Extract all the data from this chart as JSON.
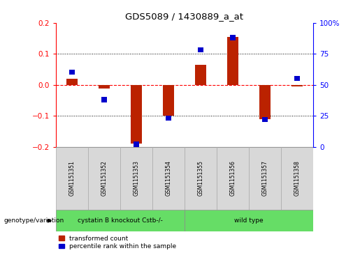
{
  "title": "GDS5089 / 1430889_a_at",
  "samples": [
    "GSM1151351",
    "GSM1151352",
    "GSM1151353",
    "GSM1151354",
    "GSM1151355",
    "GSM1151356",
    "GSM1151357",
    "GSM1151358"
  ],
  "red_values": [
    0.02,
    -0.012,
    -0.19,
    -0.1,
    0.065,
    0.155,
    -0.11,
    -0.005
  ],
  "blue_values_pct": [
    60,
    38,
    2,
    23,
    78,
    88,
    22,
    55
  ],
  "ylim_left": [
    -0.2,
    0.2
  ],
  "ylim_right": [
    0,
    100
  ],
  "yticks_left": [
    -0.2,
    -0.1,
    0.0,
    0.1,
    0.2
  ],
  "yticks_right": [
    0,
    25,
    50,
    75,
    100
  ],
  "ytick_labels_right": [
    "0",
    "25",
    "50",
    "75",
    "100%"
  ],
  "red_color": "#bb2200",
  "blue_color": "#0000cc",
  "bar_width": 0.35,
  "blue_square_size": 0.18,
  "legend_labels": [
    "transformed count",
    "percentile rank within the sample"
  ],
  "genotype_label": "genotype/variation",
  "bg_color": "#d8d8d8",
  "green_color": "#66dd66",
  "group_split": 4,
  "group1_label": "cystatin B knockout Cstb-/-",
  "group2_label": "wild type"
}
